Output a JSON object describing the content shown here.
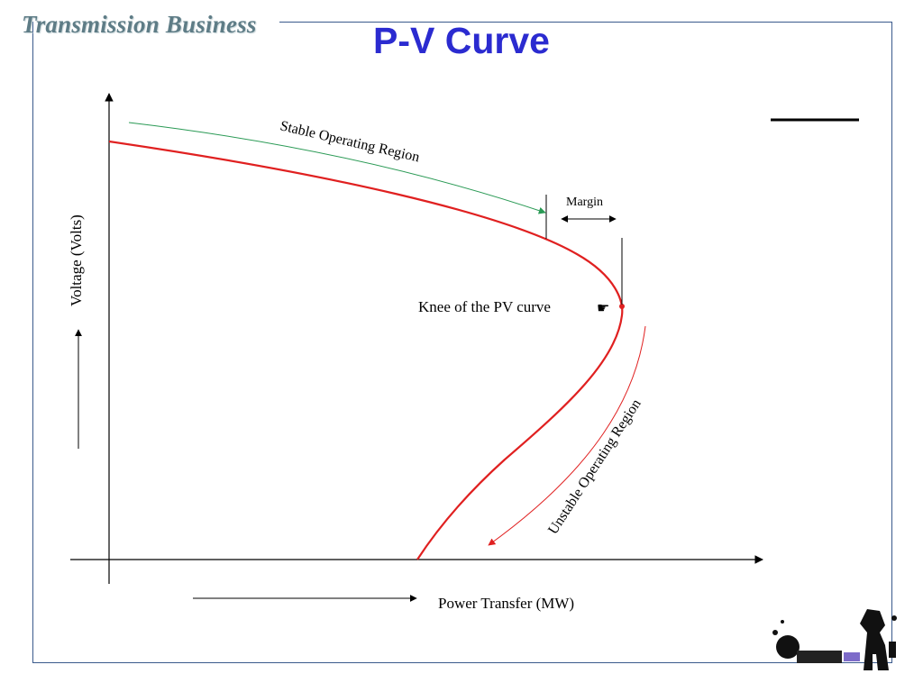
{
  "header": {
    "brand": "Transmission Business",
    "title": "P-V Curve"
  },
  "diagram": {
    "y_axis_label": "Voltage (Volts)",
    "x_axis_label": "Power Transfer (MW)",
    "stable_region": "Stable Operating Region",
    "unstable_region": "Unstable Operating Region",
    "margin_label": "Margin",
    "knee_label": "Knee of the PV curve",
    "knee_pointer": "☛"
  },
  "colors": {
    "curve": "#e02020",
    "stable_arrow": "#2a9a55",
    "unstable_arrow": "#e02020",
    "title": "#2b2bd0",
    "brand": "#5e7c86",
    "frame": "#3a5a8c"
  },
  "logo": {
    "icon": "company-logo-icon"
  }
}
